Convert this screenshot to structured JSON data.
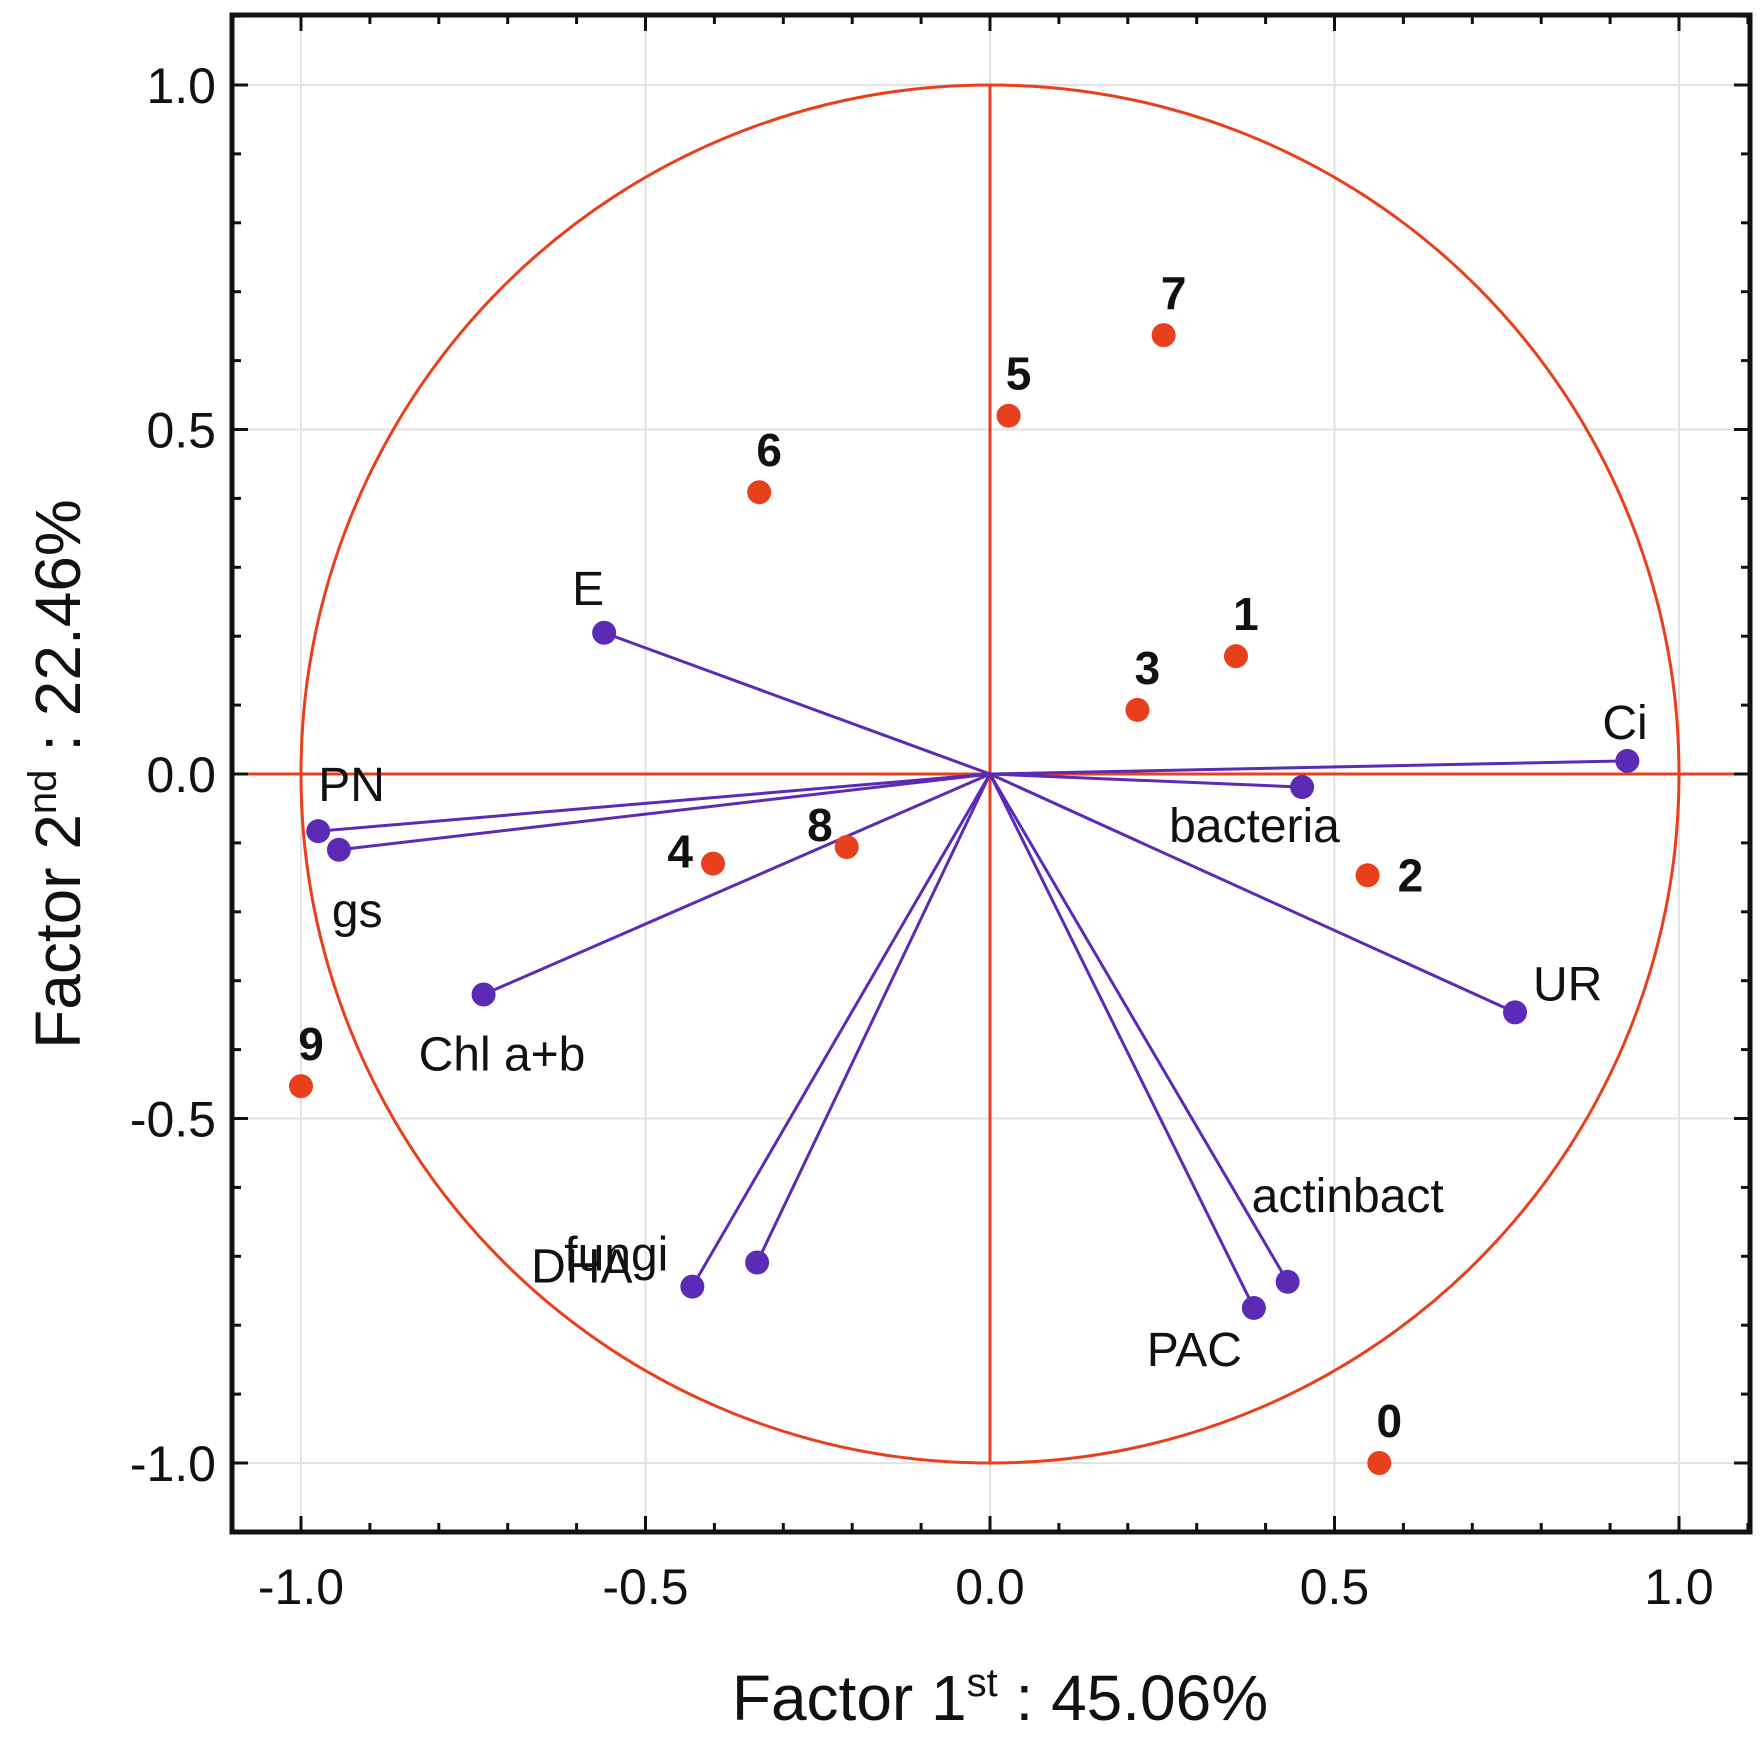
{
  "colors": {
    "accent": "#e8401c",
    "vector": "#5b2bb5",
    "grid": "#e2e2e2",
    "frame": "#111111"
  },
  "chart_data": {
    "type": "scatter",
    "subtype": "pca-loading-plot",
    "xlabel": {
      "main": "Factor 1",
      "sup": "st",
      "rest": " : 45.06%"
    },
    "ylabel": {
      "main": "Factor 2",
      "sup": "nd",
      "rest": " : 22.46%"
    },
    "xlim": [
      -1.1,
      1.1
    ],
    "ylim": [
      -1.1,
      1.1
    ],
    "xticks": [
      -1.0,
      -0.5,
      0.0,
      0.5,
      1.0
    ],
    "yticks": [
      -1.0,
      -0.5,
      0.0,
      0.5,
      1.0
    ],
    "xtick_labels": [
      "-1.0",
      "-0.5",
      "0.0",
      "0.5",
      "1.0"
    ],
    "ytick_labels": [
      "-1.0",
      "-0.5",
      "0.0",
      "0.5",
      "1.0"
    ],
    "grid": true,
    "unit_circle": true,
    "variables": [
      {
        "name": "E",
        "x": -0.56,
        "y": 0.205,
        "label_pos": "above"
      },
      {
        "name": "PN",
        "x": -0.975,
        "y": -0.083,
        "label_pos": "above-right"
      },
      {
        "name": "gs",
        "x": -0.945,
        "y": -0.11,
        "label_pos": "below"
      },
      {
        "name": "Chl a+b",
        "x": -0.735,
        "y": -0.32,
        "label_pos": "below-right"
      },
      {
        "name": "fungi",
        "x": -0.432,
        "y": -0.744,
        "label_pos": "left"
      },
      {
        "name": "DHA",
        "x": -0.338,
        "y": -0.709,
        "label_pos": "below-right"
      },
      {
        "name": "PAC",
        "x": 0.383,
        "y": -0.775,
        "label_pos": "below-left"
      },
      {
        "name": "actinbact",
        "x": 0.432,
        "y": -0.737,
        "label_pos": "above"
      },
      {
        "name": "bacteria",
        "x": 0.453,
        "y": -0.019,
        "label_pos": "below-left"
      },
      {
        "name": "UR",
        "x": 0.762,
        "y": -0.346,
        "label_pos": "above-right"
      },
      {
        "name": "Ci",
        "x": 0.925,
        "y": 0.019,
        "label_pos": "above"
      }
    ],
    "cases": [
      {
        "label": "0",
        "x": 0.565,
        "y": -1.0
      },
      {
        "label": "1",
        "x": 0.357,
        "y": 0.171
      },
      {
        "label": "2",
        "x": 0.548,
        "y": -0.147
      },
      {
        "label": "3",
        "x": 0.214,
        "y": 0.093
      },
      {
        "label": "4",
        "x": -0.402,
        "y": -0.13
      },
      {
        "label": "5",
        "x": 0.027,
        "y": 0.52
      },
      {
        "label": "6",
        "x": -0.335,
        "y": 0.409
      },
      {
        "label": "7",
        "x": 0.252,
        "y": 0.637
      },
      {
        "label": "8",
        "x": -0.208,
        "y": -0.106
      },
      {
        "label": "9",
        "x": -1.0,
        "y": -0.453
      }
    ]
  }
}
